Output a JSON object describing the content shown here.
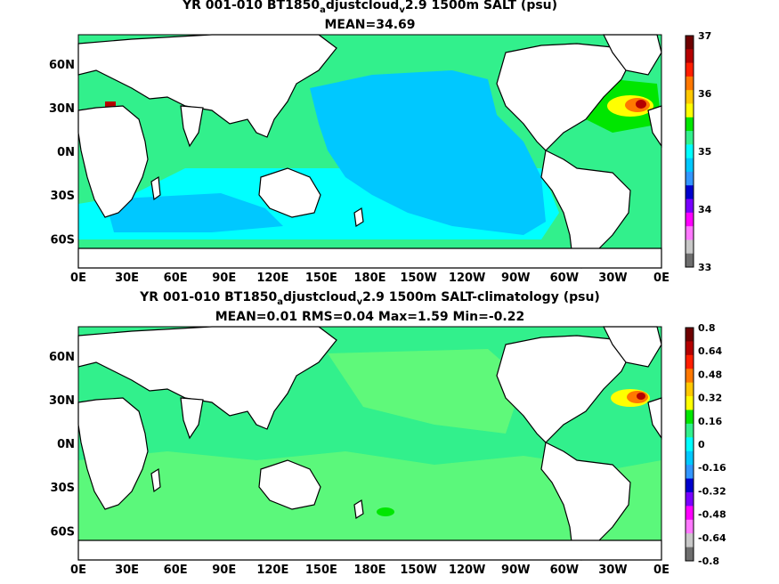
{
  "panels": [
    {
      "title_pre": "YR 001-010 BT1850",
      "title_sub1": "a",
      "title_mid": "djustcloud",
      "title_sub2": "v",
      "title_post": "2.9 1500m SALT (psu)",
      "subtitle": "MEAN=34.69",
      "colorbar_labels": [
        "37",
        "36",
        "35",
        "34",
        "33"
      ]
    },
    {
      "title_pre": "YR 001-010 BT1850",
      "title_sub1": "a",
      "title_mid": "djustcloud",
      "title_sub2": "v",
      "title_post": "2.9 1500m SALT-climatology (psu)",
      "subtitle": "MEAN=0.01   RMS=0.04   Max=1.59   Min=-0.22",
      "colorbar_labels": [
        "0.8",
        "0.64",
        "0.48",
        "0.32",
        "0.16",
        "0",
        "-0.16",
        "-0.32",
        "-0.48",
        "-0.64",
        "-0.8"
      ]
    }
  ],
  "colors": {
    "land": "#ffffff",
    "coast": "#000000",
    "salt_colorbar": [
      "#6e0000",
      "#b40000",
      "#ff1e00",
      "#ff7800",
      "#ffc800",
      "#ffff00",
      "#00e600",
      "#32f08c",
      "#00ffff",
      "#00c8ff",
      "#3296ff",
      "#0000cd",
      "#7800ff",
      "#ff00ff",
      "#ff78ff",
      "#c8c8c8",
      "#6e6e6e"
    ],
    "diff_colorbar": [
      "#6e0000",
      "#b40000",
      "#ff1e00",
      "#ff7800",
      "#ffc800",
      "#ffff00",
      "#00e600",
      "#32f08c",
      "#00ffff",
      "#00c8ff",
      "#3296ff",
      "#0000cd",
      "#7800ff",
      "#ff00ff",
      "#ff78ff",
      "#c8c8c8",
      "#6e6e6e"
    ]
  },
  "chart_data": [
    {
      "type": "heatmap",
      "title": "YR 001-010 BT1850_adjustcloud_v2.9 1500m SALT (psu)",
      "mean": 34.69,
      "x_ticks": [
        "0E",
        "30E",
        "60E",
        "90E",
        "120E",
        "150E",
        "180E",
        "150W",
        "120W",
        "90W",
        "60W",
        "30W",
        "0E"
      ],
      "y_ticks": [
        "60N",
        "30N",
        "0N",
        "30S",
        "60S"
      ],
      "colorbar_range": [
        33,
        37
      ]
    },
    {
      "type": "heatmap",
      "title": "YR 001-010 BT1850_adjustcloud_v2.9 1500m SALT-climatology (psu)",
      "mean": 0.01,
      "rms": 0.04,
      "max": 1.59,
      "min": -0.22,
      "x_ticks": [
        "0E",
        "30E",
        "60E",
        "90E",
        "120E",
        "150E",
        "180E",
        "150W",
        "120W",
        "90W",
        "60W",
        "30W",
        "0E"
      ],
      "y_ticks": [
        "60N",
        "30N",
        "0N",
        "30S",
        "60S"
      ],
      "colorbar_range": [
        -0.8,
        0.8
      ]
    }
  ]
}
